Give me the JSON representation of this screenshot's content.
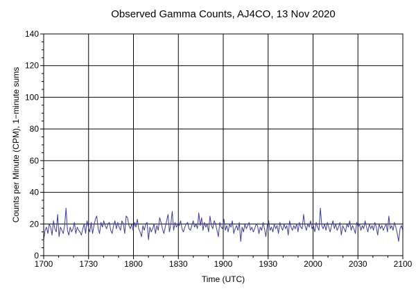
{
  "chart_data": {
    "type": "line",
    "title": "Observed Gamma Counts, AJ4CO, 13 Nov 2020",
    "xlabel": "Time (UTC)",
    "ylabel": "Counts per Minute (CPM), 1−minute sums",
    "x_tick_labels": [
      "1700",
      "1730",
      "1800",
      "1830",
      "1900",
      "1930",
      "2000",
      "2030",
      "2100"
    ],
    "x_tick_minutes": [
      0,
      30,
      60,
      90,
      120,
      150,
      180,
      210,
      240
    ],
    "y_tick_labels": [
      "0",
      "20",
      "40",
      "60",
      "80",
      "100",
      "120",
      "140"
    ],
    "ylim": [
      0,
      140
    ],
    "xlim_minutes_from_1700": [
      0,
      240
    ],
    "grid": true,
    "line_color": "#3a3a9c",
    "series": [
      {
        "values": [
          10,
          16,
          18,
          14,
          20,
          18,
          13,
          22,
          17,
          15,
          26,
          12,
          18,
          16,
          14,
          19,
          30,
          16,
          13,
          18,
          15,
          17,
          21,
          14,
          18,
          16,
          15,
          13,
          17,
          20,
          14,
          22,
          18,
          15,
          21,
          14,
          19,
          23,
          25,
          17,
          14,
          21,
          18,
          22,
          19,
          17,
          20,
          21,
          16,
          14,
          19,
          22,
          17,
          21,
          18,
          16,
          22,
          20,
          14,
          25,
          24,
          19,
          17,
          20,
          16,
          21,
          18,
          23,
          17,
          15,
          12,
          19,
          16,
          20,
          21,
          10,
          18,
          15,
          17,
          20,
          14,
          19,
          16,
          24,
          21,
          17,
          14,
          18,
          22,
          26,
          15,
          20,
          28,
          16,
          21,
          18,
          20,
          19,
          22,
          17,
          15,
          18,
          20,
          21,
          17,
          16,
          19,
          22,
          18,
          20,
          17,
          27,
          19,
          24,
          16,
          21,
          18,
          20,
          15,
          25,
          19,
          17,
          22,
          20,
          16,
          12,
          21,
          18,
          17,
          23,
          16,
          19,
          15,
          20,
          18,
          22,
          14,
          17,
          19,
          16,
          21,
          9,
          18,
          15,
          20,
          17,
          19,
          21,
          16,
          18,
          15,
          17,
          20,
          19,
          14,
          18,
          16,
          21,
          17,
          12,
          19,
          22,
          16,
          18,
          15,
          20,
          17,
          19,
          14,
          21,
          18,
          16,
          20,
          17,
          19,
          13,
          22,
          18,
          16,
          19,
          17,
          20,
          15,
          21,
          18,
          17,
          26,
          19,
          16,
          20,
          18,
          22,
          17,
          19,
          15,
          21,
          18,
          16,
          30,
          19,
          17,
          20,
          16,
          21,
          18,
          15,
          19,
          22,
          17,
          20,
          16,
          18,
          21,
          13,
          19,
          17,
          15,
          20,
          18,
          22,
          16,
          19,
          17,
          14,
          21,
          18,
          20,
          16,
          19,
          17,
          22,
          18,
          15,
          20,
          17,
          19,
          16,
          21,
          18,
          13,
          20,
          17,
          19,
          16,
          18,
          20,
          15,
          25,
          17,
          19,
          16,
          21,
          18,
          14,
          9,
          17,
          19,
          16
        ]
      }
    ]
  }
}
